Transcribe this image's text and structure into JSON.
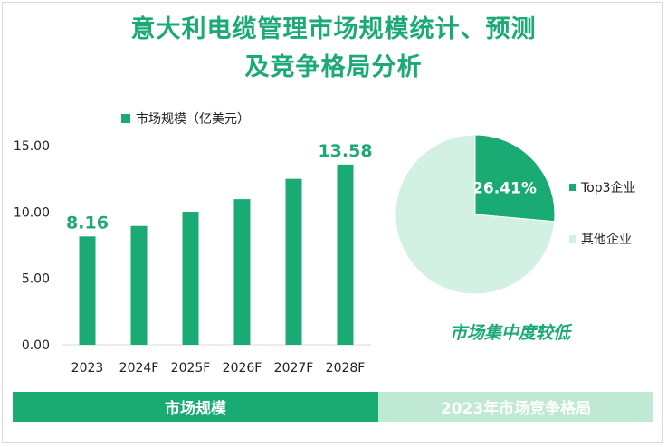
{
  "title_line1": "意大利电缆管理市场规模统计、预测",
  "title_line2": "及竞争格局分析",
  "note": "市场集中度较低",
  "footer": {
    "left": "市场规模",
    "right": "2023年市场竞争格局"
  },
  "colors": {
    "primary": "#1aaa74",
    "light": "#d3f1e2",
    "footer_light": "#bfe9d5"
  },
  "chart_data": [
    {
      "type": "bar",
      "categories": [
        "2023",
        "2024F",
        "2025F",
        "2026F",
        "2027F",
        "2028F"
      ],
      "series": [
        {
          "name": "市场规模（亿美元）",
          "values": [
            8.16,
            8.95,
            10.02,
            10.97,
            12.5,
            13.58
          ]
        }
      ],
      "data_labels": [
        "8.16",
        "",
        "",
        "",
        "",
        "13.58"
      ],
      "ylim": [
        0,
        15
      ],
      "yticks": [
        "0.00",
        "5.00",
        "10.00",
        "15.00"
      ],
      "grid": false,
      "legend": "top"
    },
    {
      "type": "pie",
      "slices": [
        {
          "name": "Top3企业",
          "value": 26.41,
          "label": "26.41%"
        },
        {
          "name": "其他企业",
          "value": 73.59,
          "label": ""
        }
      ],
      "legend": "right"
    }
  ]
}
